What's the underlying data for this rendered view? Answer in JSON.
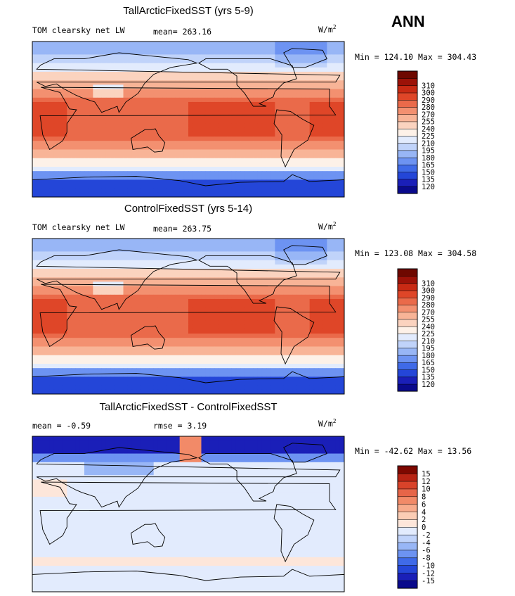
{
  "season": "ANN",
  "colors": {
    "abs_scale": [
      "#0a0a8c",
      "#1a1fb8",
      "#2446d8",
      "#3f6ae8",
      "#6d93f2",
      "#98b6f6",
      "#c0d3fa",
      "#e2ebfd",
      "#fdf1e8",
      "#fbd3bf",
      "#f8b497",
      "#f39070",
      "#ea6a4a",
      "#df4628",
      "#c82a14",
      "#9c1208",
      "#6e0800"
    ],
    "diff_scale": [
      "#0a0a8c",
      "#1a1fb8",
      "#2446d8",
      "#3f6ae8",
      "#6d93f2",
      "#98b6f6",
      "#c0d3fa",
      "#e2ebfd",
      "#fde6da",
      "#fbcdb5",
      "#f8ab8c",
      "#f28a68",
      "#e66548",
      "#d9432a",
      "#b82414",
      "#7e0800"
    ],
    "land_line": "#000000"
  },
  "chart_data": [
    {
      "type": "heatmap",
      "title": "TallArcticFixedSST (yrs 5-9)",
      "variable": "TOM clearsky net LW",
      "mean_label": "mean=",
      "mean": "263.16",
      "units_base": "W/m",
      "units_exp": "2",
      "min_label": "Min =",
      "min": "124.10",
      "max_label": "Max =",
      "max": "304.43",
      "colorbar_levels": [
        "120",
        "135",
        "150",
        "165",
        "180",
        "195",
        "210",
        "225",
        "240",
        "255",
        "270",
        "280",
        "290",
        "300",
        "310"
      ],
      "field_description": "zonal bands: ~130-170 over Antarctica, ~200 at southern high latitudes, ~240-270 midlatitudes, ~280-300 across tropics/subtropics, 200-230 over Arctic"
    },
    {
      "type": "heatmap",
      "title": "ControlFixedSST (yrs 5-14)",
      "variable": "TOM clearsky net LW",
      "mean_label": "mean=",
      "mean": "263.75",
      "units_base": "W/m",
      "units_exp": "2",
      "min_label": "Min =",
      "min": "123.08",
      "max_label": "Max =",
      "max": "304.58",
      "colorbar_levels": [
        "120",
        "135",
        "150",
        "165",
        "180",
        "195",
        "210",
        "225",
        "240",
        "255",
        "270",
        "280",
        "290",
        "300",
        "310"
      ]
    },
    {
      "type": "heatmap",
      "title": "TallArcticFixedSST - ControlFixedSST",
      "mean_label": "mean =",
      "mean": "-0.59",
      "rmse_label": "rmse =",
      "rmse": "3.19",
      "units_base": "W/m",
      "units_exp": "2",
      "min_label": "Min =",
      "min": "-42.62",
      "max_label": "Max =",
      "max": "13.56",
      "colorbar_levels": [
        "-15",
        "-12",
        "-10",
        "-8",
        "-6",
        "-4",
        "-2",
        "0",
        "2",
        "4",
        "6",
        "8",
        "10",
        "12",
        "15"
      ]
    }
  ]
}
